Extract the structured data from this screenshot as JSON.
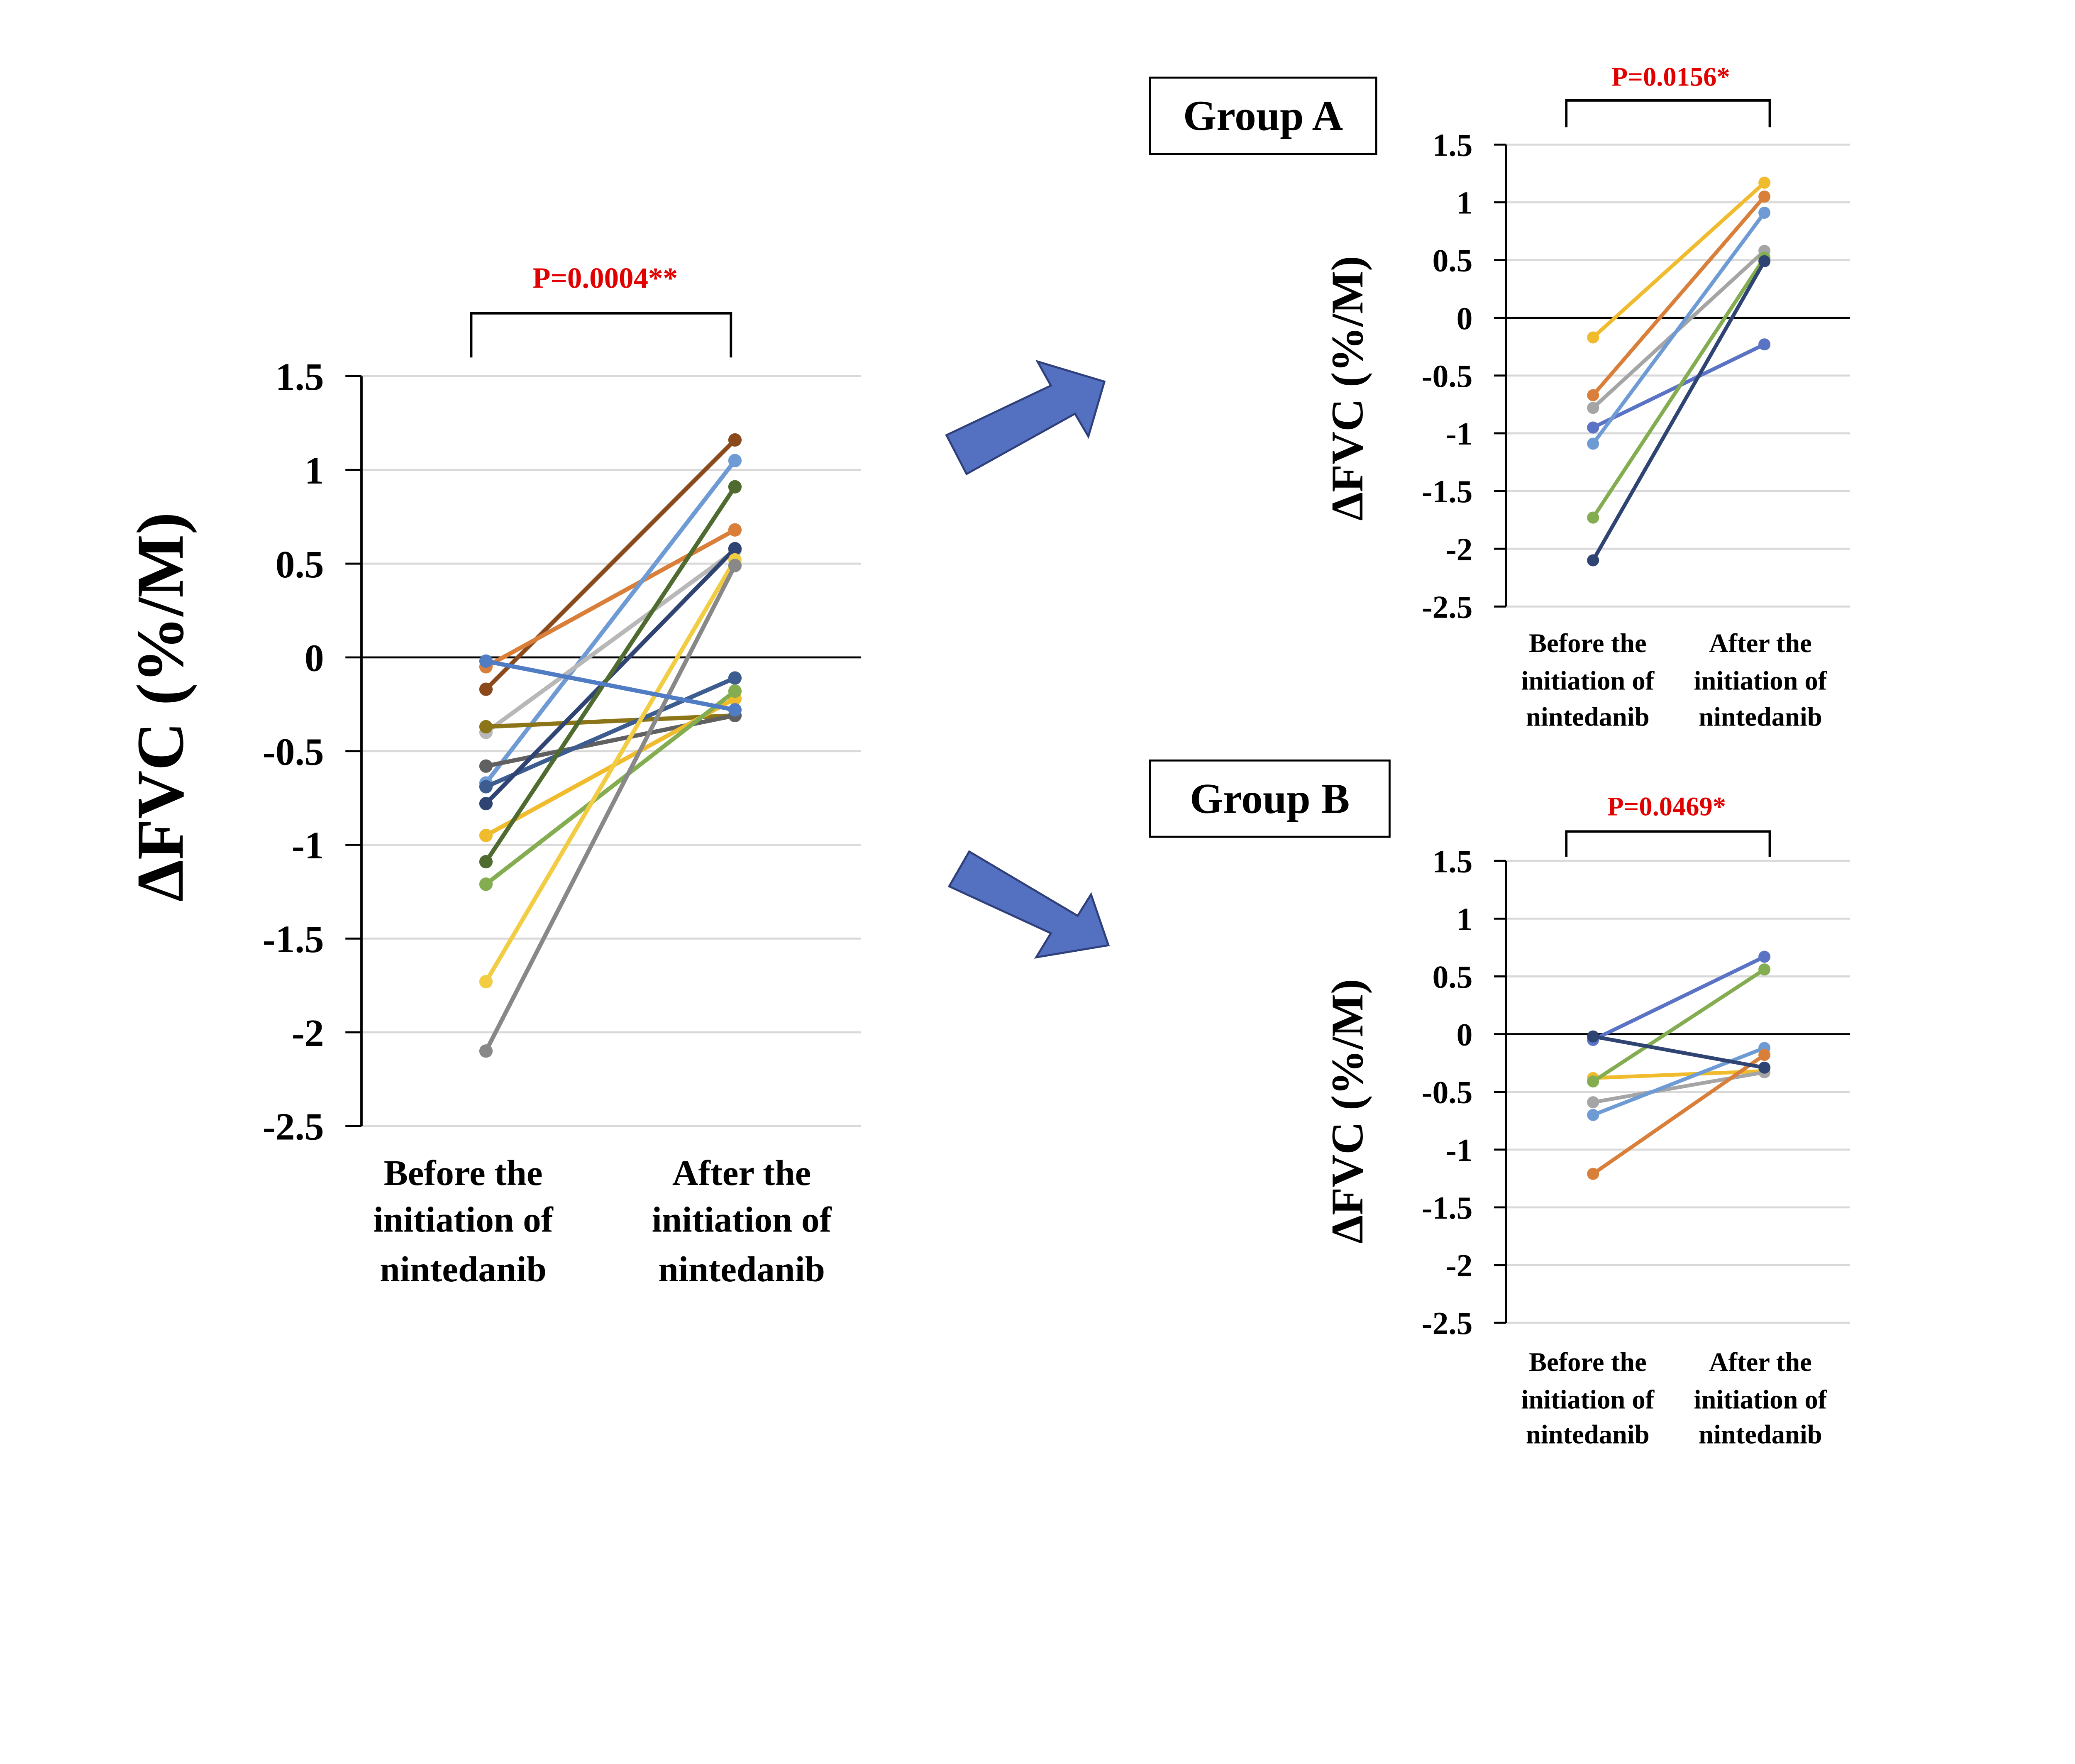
{
  "chart_data": [
    {
      "type": "line",
      "id": "overall",
      "ylabel": "ΔFVC (%/M)",
      "categories": [
        "Before the initiation of nintedanib",
        "After the initiation of nintedanib"
      ],
      "category_lines": [
        [
          "Before the",
          "initiation of",
          "nintedanib"
        ],
        [
          "After the",
          "initiation of",
          "nintedanib"
        ]
      ],
      "ylim": [
        -2.5,
        1.5
      ],
      "yticks": [
        "1.5",
        "1",
        "0.5",
        "0",
        "-0.5",
        "-1",
        "-1.5",
        "-2",
        "-2.5"
      ],
      "grid": true,
      "p_value": "P=0.0004**",
      "series": [
        {
          "color": "#8b4a1c",
          "values": [
            -0.17,
            1.16
          ]
        },
        {
          "color": "#d97f3a",
          "values": [
            -0.05,
            0.68
          ]
        },
        {
          "color": "#6f9bd5",
          "values": [
            -0.67,
            1.05
          ]
        },
        {
          "color": "#b8b8b8",
          "values": [
            -0.4,
            0.57
          ]
        },
        {
          "color": "#8c7418",
          "values": [
            -0.37,
            -0.31
          ]
        },
        {
          "color": "#606060",
          "values": [
            -0.58,
            -0.31
          ]
        },
        {
          "color": "#3d5d90",
          "values": [
            -0.69,
            -0.11
          ]
        },
        {
          "color": "#2f4473",
          "values": [
            -0.78,
            0.58
          ]
        },
        {
          "color": "#f0bc2e",
          "values": [
            -0.95,
            -0.22
          ]
        },
        {
          "color": "#4f6b30",
          "values": [
            -1.09,
            0.91
          ]
        },
        {
          "color": "#84ad52",
          "values": [
            -1.21,
            -0.18
          ]
        },
        {
          "color": "#f2cd44",
          "values": [
            -1.73,
            0.52
          ]
        },
        {
          "color": "#888888",
          "values": [
            -2.1,
            0.49
          ]
        },
        {
          "color": "#4f7cc3",
          "values": [
            -0.02,
            -0.28
          ]
        }
      ]
    },
    {
      "type": "line",
      "id": "group-a",
      "title": "Group A",
      "ylabel": "ΔFVC (%/M)",
      "categories": [
        "Before the initiation of nintedanib",
        "After the initiation of nintedanib"
      ],
      "category_lines": [
        [
          "Before the",
          "initiation of",
          "nintedanib"
        ],
        [
          "After the",
          "initiation of",
          "nintedanib"
        ]
      ],
      "ylim": [
        -2.5,
        1.5
      ],
      "yticks": [
        "1.5",
        "1",
        "0.5",
        "0",
        "-0.5",
        "-1",
        "-1.5",
        "-2",
        "-2.5"
      ],
      "grid": true,
      "p_value": "P=0.0156*",
      "series": [
        {
          "color": "#f0bc2e",
          "values": [
            -0.17,
            1.17
          ]
        },
        {
          "color": "#d97f3a",
          "values": [
            -0.67,
            1.05
          ]
        },
        {
          "color": "#a5a5a5",
          "values": [
            -0.78,
            0.58
          ]
        },
        {
          "color": "#5b73c4",
          "values": [
            -0.95,
            -0.23
          ]
        },
        {
          "color": "#6f9bd5",
          "values": [
            -1.09,
            0.91
          ]
        },
        {
          "color": "#84ad52",
          "values": [
            -1.73,
            0.52
          ]
        },
        {
          "color": "#2f4473",
          "values": [
            -2.1,
            0.49
          ]
        }
      ]
    },
    {
      "type": "line",
      "id": "group-b",
      "title": "Group B",
      "ylabel": "ΔFVC (%/M)",
      "categories": [
        "Before the initiation of nintedanib",
        "After the initiation of nintedanib"
      ],
      "category_lines": [
        [
          "Before the",
          "initiation of",
          "nintedanib"
        ],
        [
          "After the",
          "initiation of",
          "nintedanib"
        ]
      ],
      "ylim": [
        -2.5,
        1.5
      ],
      "yticks": [
        "1.5",
        "1",
        "0.5",
        "0",
        "-0.5",
        "-1",
        "-1.5",
        "-2",
        "-2.5"
      ],
      "grid": true,
      "p_value": "P=0.0469*",
      "series": [
        {
          "color": "#5b73c4",
          "values": [
            -0.05,
            0.67
          ]
        },
        {
          "color": "#f0bc2e",
          "values": [
            -0.38,
            -0.32
          ]
        },
        {
          "color": "#84ad52",
          "values": [
            -0.41,
            0.56
          ]
        },
        {
          "color": "#a5a5a5",
          "values": [
            -0.59,
            -0.33
          ]
        },
        {
          "color": "#6f9bd5",
          "values": [
            -0.7,
            -0.12
          ]
        },
        {
          "color": "#d97f3a",
          "values": [
            -1.21,
            -0.18
          ]
        },
        {
          "color": "#2f4473",
          "values": [
            -0.02,
            -0.29
          ]
        }
      ]
    }
  ],
  "colors": {
    "p_value": "#e00000",
    "arrow": "#5470c0",
    "arrow_outline": "#2f3f7a"
  },
  "icons": [
    "arrow-up-right-icon",
    "arrow-down-right-icon"
  ]
}
